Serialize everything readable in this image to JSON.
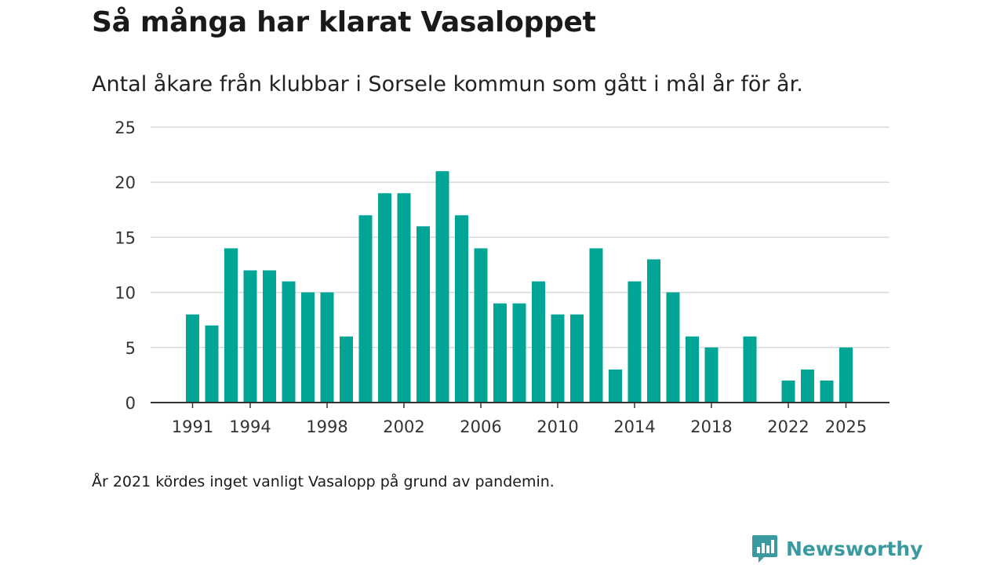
{
  "title": "Så många har klarat Vasaloppet",
  "subtitle": "Antal åkare från klubbar i Sorsele kommun som gått i mål år för år.",
  "footnote": "År 2021 kördes inget vanligt Vasalopp på grund av pandemin.",
  "brand": {
    "name": "Newsworthy",
    "icon": "newsworthy-logo-icon",
    "color": "#3a9aa0"
  },
  "colors": {
    "bar": "#00a596",
    "grid": "#d9d9d9",
    "axis": "#333333"
  },
  "chart_data": {
    "type": "bar",
    "title": "Så många har klarat Vasaloppet",
    "xlabel": "",
    "ylabel": "",
    "ylim": [
      0,
      25
    ],
    "yticks": [
      0,
      5,
      10,
      15,
      20,
      25
    ],
    "xticks": [
      1991,
      1994,
      1998,
      2002,
      2006,
      2010,
      2014,
      2018,
      2022,
      2025
    ],
    "grid": true,
    "categories": [
      1991,
      1992,
      1993,
      1994,
      1995,
      1996,
      1997,
      1998,
      1999,
      2000,
      2001,
      2002,
      2003,
      2004,
      2005,
      2006,
      2007,
      2008,
      2009,
      2010,
      2011,
      2012,
      2013,
      2014,
      2015,
      2016,
      2017,
      2018,
      2019,
      2020,
      2021,
      2022,
      2023,
      2024,
      2025
    ],
    "values": [
      8,
      7,
      14,
      12,
      12,
      11,
      10,
      10,
      6,
      17,
      19,
      19,
      16,
      21,
      17,
      14,
      9,
      9,
      11,
      8,
      8,
      14,
      3,
      11,
      13,
      10,
      6,
      5,
      null,
      6,
      null,
      2,
      3,
      2,
      5
    ]
  }
}
